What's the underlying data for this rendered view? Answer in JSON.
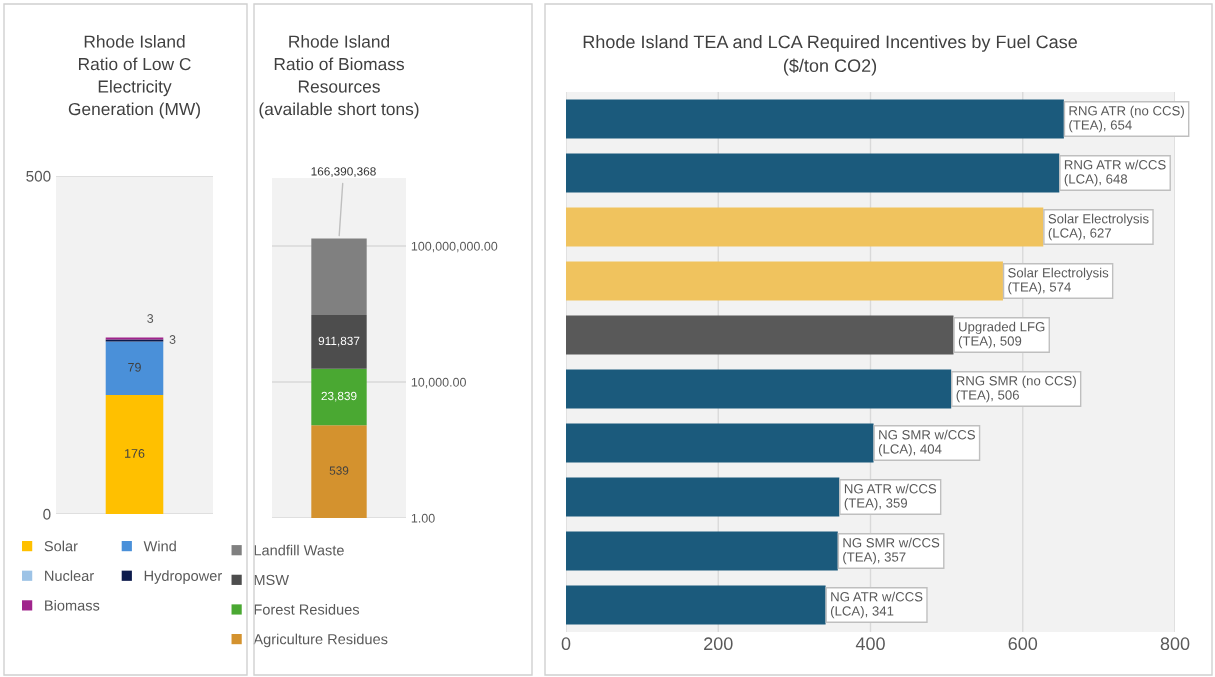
{
  "chart_data": [
    {
      "type": "bar",
      "stacked": true,
      "title": "Rhode Island\nRatio of Low C\nElectricity\nGeneration (MW)",
      "categories": [
        null
      ],
      "series": [
        {
          "name": "Solar",
          "color": "#ffc000",
          "values": [
            176
          ],
          "value_labels": [
            "176"
          ]
        },
        {
          "name": "Wind",
          "color": "#4a90d9",
          "values": [
            79
          ],
          "value_labels": [
            "79"
          ]
        },
        {
          "name": "Nuclear",
          "color": "#9dc3e6",
          "values": [
            0
          ],
          "value_labels": [
            null
          ]
        },
        {
          "name": "Hydropower",
          "color": "#0d1b4c",
          "values": [
            3
          ],
          "value_labels": [
            "3"
          ]
        },
        {
          "name": "Biomass",
          "color": "#a0248c",
          "values": [
            3
          ],
          "value_labels": [
            "3"
          ]
        }
      ],
      "ylim": [
        0,
        500
      ],
      "yticks": [
        0,
        500
      ],
      "grid": "y",
      "legend": "bottom"
    },
    {
      "type": "bar",
      "stacked": true,
      "log": "y",
      "title": "Rhode Island\nRatio of Biomass\nResources\n(available short tons)",
      "categories": [
        null
      ],
      "series": [
        {
          "name": "Agriculture Residues",
          "color": "#d4922e",
          "values": [
            539
          ],
          "value_labels": [
            "539"
          ]
        },
        {
          "name": "Forest Residues",
          "color": "#4aa832",
          "values": [
            23839
          ],
          "value_labels": [
            "23,839"
          ]
        },
        {
          "name": "MSW",
          "color": "#4d4d4d",
          "values": [
            911837
          ],
          "value_labels": [
            "911,837"
          ]
        },
        {
          "name": "Landfill Waste",
          "color": "#808080",
          "values": [
            166390368
          ],
          "value_labels": [
            "166,390,368"
          ]
        }
      ],
      "ylim": [
        1,
        10000000000
      ],
      "yticks": [
        {
          "value": 1,
          "label": "1.00"
        },
        {
          "value": 10000,
          "label": "10,000.00"
        },
        {
          "value": 100000000,
          "label": "100,000,000.00"
        }
      ],
      "grid": "y",
      "legend": "bottom"
    },
    {
      "type": "bar",
      "orientation": "horizontal",
      "title": "Rhode Island TEA and LCA Required Incentives by Fuel Case\n($/ton CO2)",
      "categories": [
        null,
        null,
        null,
        null,
        null,
        null,
        null,
        null,
        null,
        null
      ],
      "values": [
        654,
        648,
        627,
        574,
        509,
        506,
        404,
        359,
        357,
        341
      ],
      "colors": [
        "#1b5a7c",
        "#1b5a7c",
        "#f0c35e",
        "#f0c35e",
        "#595959",
        "#1b5a7c",
        "#1b5a7c",
        "#1b5a7c",
        "#1b5a7c",
        "#1b5a7c"
      ],
      "value_labels": [
        "RNG ATR (no CCS)\n(TEA), 654",
        "RNG ATR w/CCS\n(LCA), 648",
        "Solar Electrolysis\n(LCA), 627",
        "Solar Electrolysis\n(TEA), 574",
        "Upgraded LFG\n(TEA), 509",
        "RNG SMR (no CCS)\n(TEA), 506",
        "NG SMR w/CCS\n(LCA), 404",
        "NG ATR w/CCS\n(TEA), 359",
        "NG SMR w/CCS\n(TEA), 357",
        "NG ATR w/CCS\n(LCA), 341"
      ],
      "xlim": [
        0,
        800
      ],
      "xticks": [
        0,
        200,
        400,
        600,
        800
      ],
      "grid": "x",
      "legend": false
    }
  ]
}
